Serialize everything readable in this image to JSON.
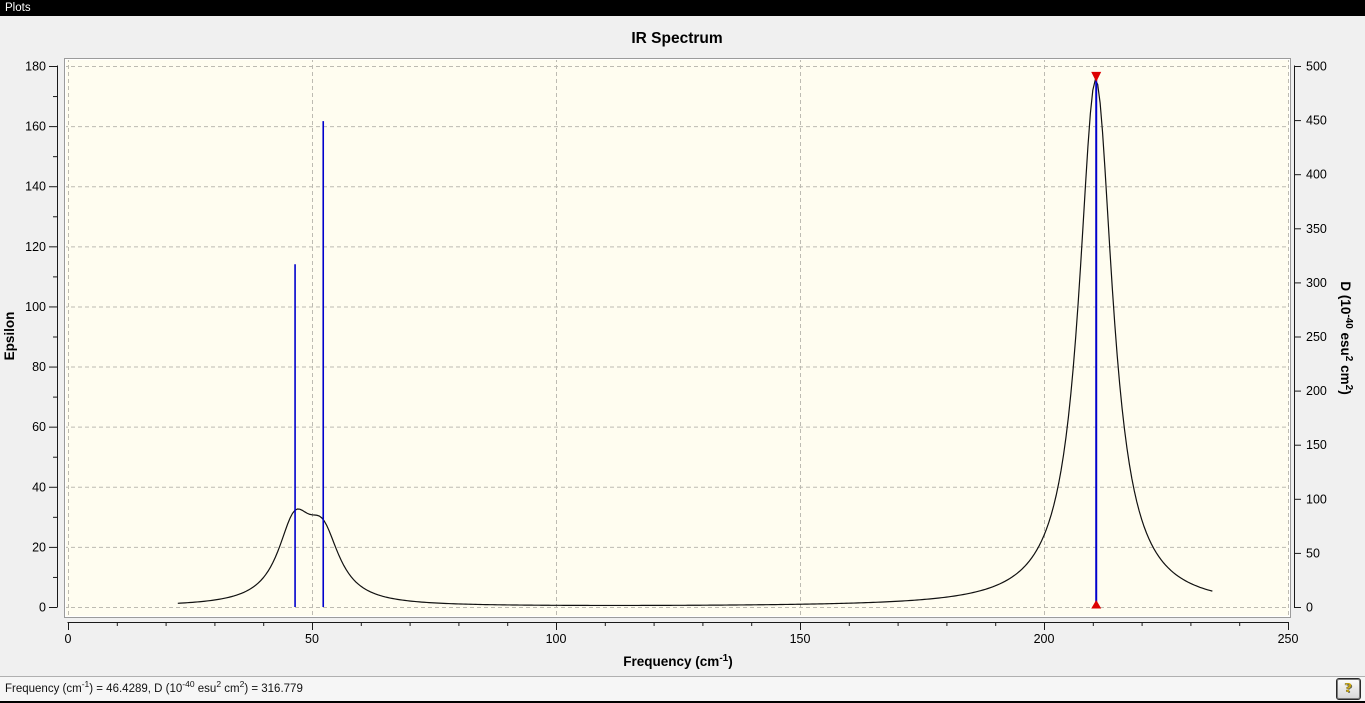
{
  "window": {
    "title_bar": "Plots",
    "help_glyph": "?",
    "status_segments": [
      {
        "t": "Frequency (cm"
      },
      {
        "t": "-1",
        "sup": true
      },
      {
        "t": ") = 46.4289, D (10"
      },
      {
        "t": "-40",
        "sup": true
      },
      {
        "t": " esu"
      },
      {
        "t": "2",
        "sup": true
      },
      {
        "t": " cm"
      },
      {
        "t": "2",
        "sup": true
      },
      {
        "t": ") = 316.779"
      }
    ]
  },
  "chart_data": {
    "type": "line",
    "title": "IR Spectrum",
    "x_axis": {
      "label_segments": [
        {
          "t": "Frequency (cm"
        },
        {
          "t": "-1",
          "sup": true
        },
        {
          "t": ")"
        }
      ],
      "min": 0,
      "max": 250,
      "major_ticks": [
        0,
        50,
        100,
        150,
        200,
        250
      ],
      "minor_step": 10
    },
    "y_axis_left": {
      "label": "Epsilon",
      "min": 0,
      "max": 180,
      "major_ticks": [
        0,
        20,
        40,
        60,
        80,
        100,
        120,
        140,
        160,
        180
      ],
      "minor_step": 10
    },
    "y_axis_right": {
      "label_segments": [
        {
          "t": "D (10"
        },
        {
          "t": "-40",
          "sup": true
        },
        {
          "t": " esu"
        },
        {
          "t": "2",
          "sup": true
        },
        {
          "t": " cm"
        },
        {
          "t": "2",
          "sup": true
        },
        {
          "t": ")"
        }
      ],
      "min": 0,
      "max": 500,
      "major_ticks": [
        0,
        50,
        100,
        150,
        200,
        250,
        300,
        350,
        400,
        450,
        500
      ]
    },
    "peaks": [
      {
        "frequency": 46.4289,
        "d": 316.779,
        "selected": false
      },
      {
        "frequency": 52.2,
        "d": 449,
        "selected": false
      },
      {
        "frequency": 210.6,
        "d": 489,
        "selected": true
      }
    ],
    "curve": {
      "x_start": 22.5,
      "x_end": 234.6,
      "step": 0.5,
      "gamma": 4.2,
      "epsilon_amplitudes": [
        24.8,
        20.6,
        175.4
      ]
    },
    "grid": true,
    "legend": null,
    "colors": {
      "stick": "#0000cd",
      "curve": "#111111",
      "marker": "#dd0000",
      "grid": "#bdbbb2",
      "plot_bg": "#fffdf0",
      "panel_bg": "#f0f0f0",
      "frame_dark": "#9b9b9b",
      "frame_light": "#ffffff",
      "axis": "#1a1a1a"
    }
  }
}
